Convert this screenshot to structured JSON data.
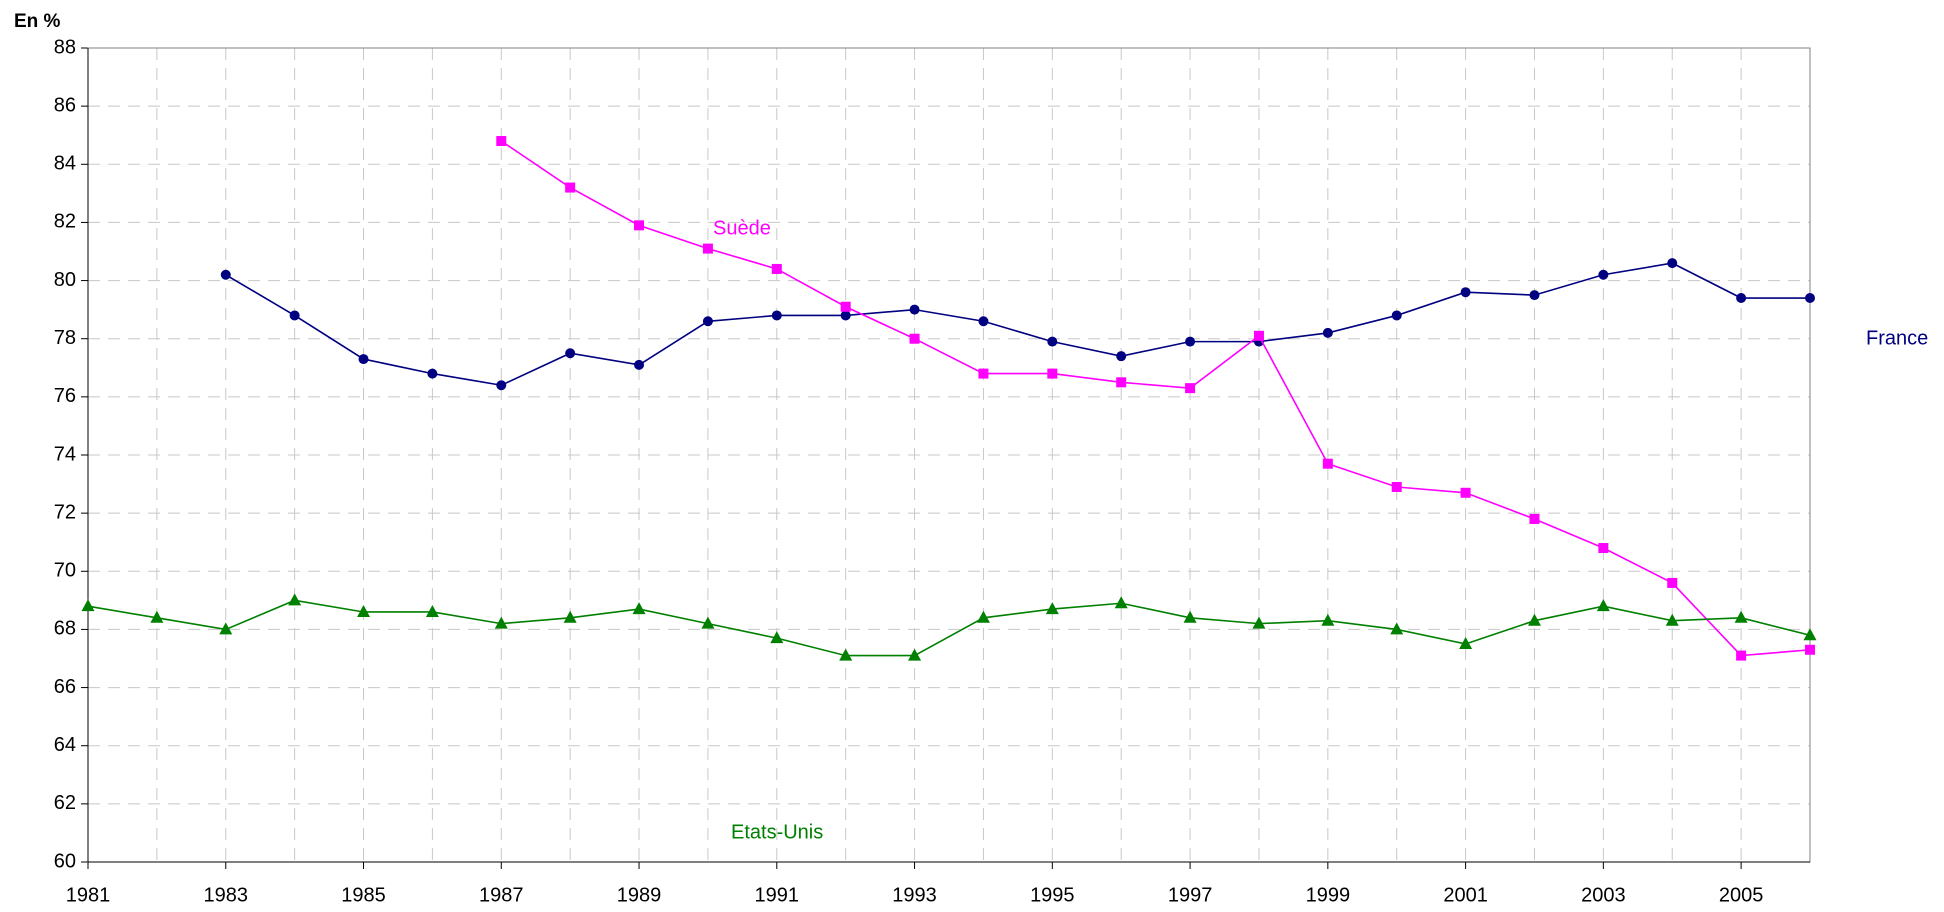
{
  "chart_data": {
    "type": "line",
    "ylabel": "En %",
    "x": [
      1981,
      1982,
      1983,
      1984,
      1985,
      1986,
      1987,
      1988,
      1989,
      1990,
      1991,
      1992,
      1993,
      1994,
      1995,
      1996,
      1997,
      1998,
      1999,
      2000,
      2001,
      2002,
      2003,
      2004,
      2005,
      2006
    ],
    "xlim": [
      1981,
      2006
    ],
    "xticks": [
      1981,
      1983,
      1985,
      1987,
      1989,
      1991,
      1993,
      1995,
      1997,
      1999,
      2001,
      2003,
      2005
    ],
    "ylim": [
      60,
      88
    ],
    "yticks": [
      60,
      62,
      64,
      66,
      68,
      70,
      72,
      74,
      76,
      78,
      80,
      82,
      84,
      86,
      88
    ],
    "grid": true,
    "series": [
      {
        "name": "France",
        "color": "#000080",
        "marker": "circle",
        "values": [
          null,
          null,
          80.2,
          78.8,
          77.3,
          76.8,
          76.4,
          77.5,
          77.1,
          78.6,
          78.8,
          78.8,
          79.0,
          78.6,
          77.9,
          77.4,
          77.9,
          77.9,
          78.2,
          78.8,
          79.6,
          79.5,
          80.2,
          80.6,
          79.4,
          79.4
        ]
      },
      {
        "name": "Suède",
        "color": "#ff00ff",
        "marker": "square",
        "values": [
          null,
          null,
          null,
          null,
          null,
          null,
          84.8,
          83.2,
          81.9,
          81.1,
          80.4,
          79.1,
          78.0,
          76.8,
          76.8,
          76.5,
          76.3,
          78.1,
          73.7,
          72.9,
          72.7,
          71.8,
          70.8,
          69.6,
          67.1,
          67.3
        ]
      },
      {
        "name": "Etats-Unis",
        "color": "#008000",
        "marker": "triangle",
        "values": [
          68.8,
          68.4,
          68.0,
          69.0,
          68.6,
          68.6,
          68.2,
          68.4,
          68.7,
          68.2,
          67.7,
          67.1,
          67.1,
          68.4,
          68.7,
          68.9,
          68.4,
          68.2,
          68.3,
          68.0,
          67.5,
          68.3,
          68.8,
          68.3,
          68.4,
          67.8
        ]
      }
    ]
  }
}
